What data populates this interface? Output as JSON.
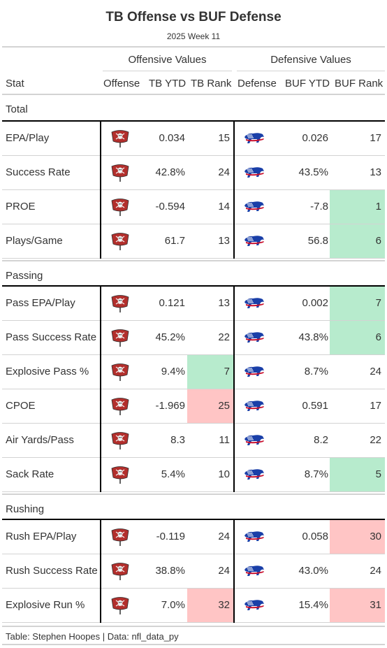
{
  "title": "TB Offense vs BUF Defense",
  "subtitle": "2025 Week 11",
  "spanners": {
    "offense": "Offensive Values",
    "defense": "Defensive Values"
  },
  "headers": {
    "stat": "Stat",
    "offense": "Offense",
    "tb_ytd": "TB YTD",
    "tb_rank": "TB Rank",
    "defense": "Defense",
    "buf_ytd": "BUF YTD",
    "buf_rank": "BUF Rank"
  },
  "colors": {
    "good": "#b7ebcd",
    "bad": "#ffc5c5",
    "tb_red": "#b22f2c",
    "tb_pewter": "#3a3a3a",
    "buf_blue": "#1a3fa8",
    "buf_red": "#c8102e"
  },
  "icons": {
    "offense": "buccaneers-flag-logo",
    "defense": "bills-buffalo-logo"
  },
  "groups": [
    {
      "name": "Total",
      "rows": [
        {
          "stat": "EPA/Play",
          "tb_ytd": "0.034",
          "tb_rank": "15",
          "tb_hl": "",
          "buf_ytd": "0.026",
          "buf_rank": "17",
          "buf_hl": ""
        },
        {
          "stat": "Success Rate",
          "tb_ytd": "42.8%",
          "tb_rank": "24",
          "tb_hl": "",
          "buf_ytd": "43.5%",
          "buf_rank": "13",
          "buf_hl": ""
        },
        {
          "stat": "PROE",
          "tb_ytd": "-0.594",
          "tb_rank": "14",
          "tb_hl": "",
          "buf_ytd": "-7.8",
          "buf_rank": "1",
          "buf_hl": "good"
        },
        {
          "stat": "Plays/Game",
          "tb_ytd": "61.7",
          "tb_rank": "13",
          "tb_hl": "",
          "buf_ytd": "56.8",
          "buf_rank": "6",
          "buf_hl": "good"
        }
      ]
    },
    {
      "name": "Passing",
      "rows": [
        {
          "stat": "Pass EPA/Play",
          "tb_ytd": "0.121",
          "tb_rank": "13",
          "tb_hl": "",
          "buf_ytd": "0.002",
          "buf_rank": "7",
          "buf_hl": "good"
        },
        {
          "stat": "Pass Success Rate",
          "tb_ytd": "45.2%",
          "tb_rank": "22",
          "tb_hl": "",
          "buf_ytd": "43.8%",
          "buf_rank": "6",
          "buf_hl": "good"
        },
        {
          "stat": "Explosive Pass %",
          "tb_ytd": "9.4%",
          "tb_rank": "7",
          "tb_hl": "good",
          "buf_ytd": "8.7%",
          "buf_rank": "24",
          "buf_hl": ""
        },
        {
          "stat": "CPOE",
          "tb_ytd": "-1.969",
          "tb_rank": "25",
          "tb_hl": "bad",
          "buf_ytd": "0.591",
          "buf_rank": "17",
          "buf_hl": ""
        },
        {
          "stat": "Air Yards/Pass",
          "tb_ytd": "8.3",
          "tb_rank": "11",
          "tb_hl": "",
          "buf_ytd": "8.2",
          "buf_rank": "22",
          "buf_hl": ""
        },
        {
          "stat": "Sack Rate",
          "tb_ytd": "5.4%",
          "tb_rank": "10",
          "tb_hl": "",
          "buf_ytd": "8.7%",
          "buf_rank": "5",
          "buf_hl": "good"
        }
      ]
    },
    {
      "name": "Rushing",
      "rows": [
        {
          "stat": "Rush EPA/Play",
          "tb_ytd": "-0.119",
          "tb_rank": "24",
          "tb_hl": "",
          "buf_ytd": "0.058",
          "buf_rank": "30",
          "buf_hl": "bad"
        },
        {
          "stat": "Rush Success Rate",
          "tb_ytd": "38.8%",
          "tb_rank": "24",
          "tb_hl": "",
          "buf_ytd": "43.0%",
          "buf_rank": "24",
          "buf_hl": ""
        },
        {
          "stat": "Explosive Run %",
          "tb_ytd": "7.0%",
          "tb_rank": "32",
          "tb_hl": "bad",
          "buf_ytd": "15.4%",
          "buf_rank": "31",
          "buf_hl": "bad"
        }
      ]
    }
  ],
  "footer": "Table: Stephen Hoopes | Data: nfl_data_py"
}
